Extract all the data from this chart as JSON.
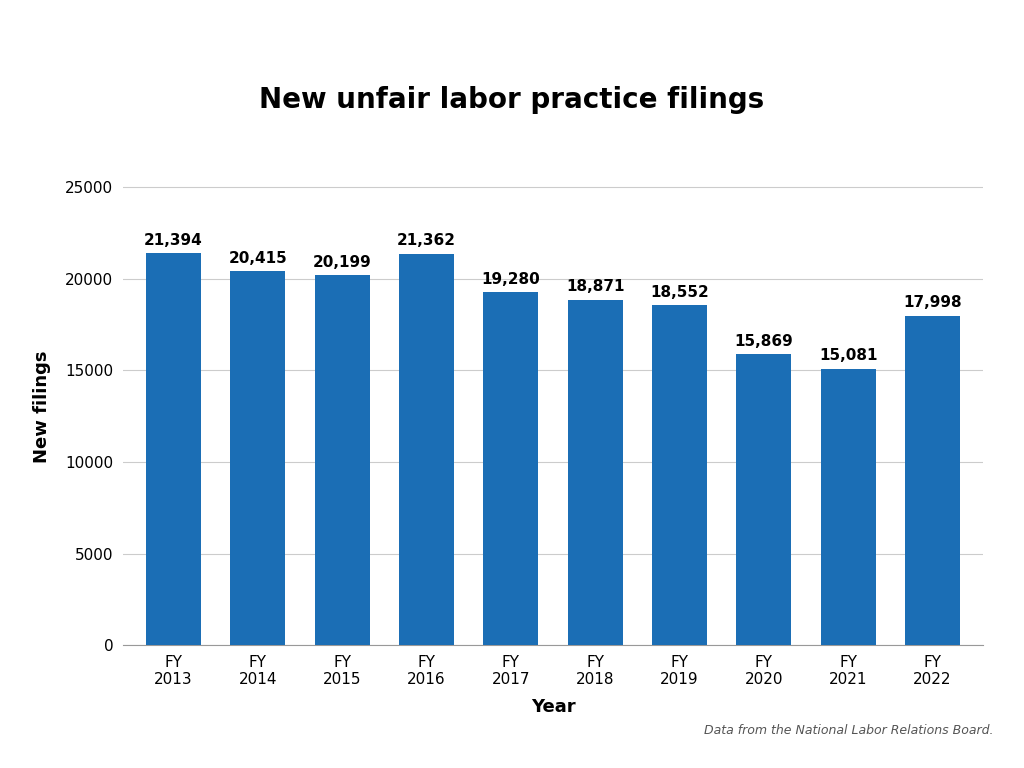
{
  "title": "New unfair labor practice filings",
  "xlabel": "Year",
  "ylabel": "New filings",
  "categories": [
    "FY\n2013",
    "FY\n2014",
    "FY\n2015",
    "FY\n2016",
    "FY\n2017",
    "FY\n2018",
    "FY\n2019",
    "FY\n2020",
    "FY\n2021",
    "FY\n2022"
  ],
  "values": [
    21394,
    20415,
    20199,
    21362,
    19280,
    18871,
    18552,
    15869,
    15081,
    17998
  ],
  "labels": [
    "21,394",
    "20,415",
    "20,199",
    "21,362",
    "19,280",
    "18,871",
    "18,552",
    "15,869",
    "15,081",
    "17,998"
  ],
  "bar_color": "#1B6EB5",
  "ylim": [
    0,
    26000
  ],
  "yticks": [
    0,
    5000,
    10000,
    15000,
    20000,
    25000
  ],
  "ytick_labels": [
    "0",
    "5000",
    "10000",
    "15000",
    "20000",
    "25000"
  ],
  "title_fontsize": 20,
  "label_fontsize": 11,
  "axis_label_fontsize": 13,
  "tick_fontsize": 11,
  "footnote": "Data from the National Labor Relations Board.",
  "background_color": "#ffffff",
  "grid_color": "#cccccc"
}
